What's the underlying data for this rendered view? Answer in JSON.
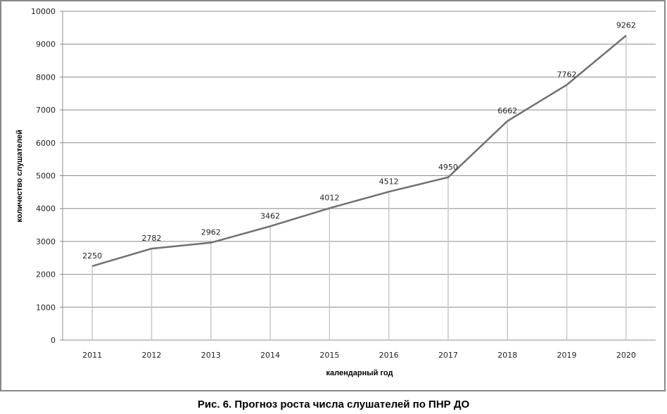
{
  "chart_data": {
    "type": "line",
    "title": "",
    "xlabel": "календарный год",
    "ylabel": "количество слушателей",
    "categories": [
      "2011",
      "2012",
      "2013",
      "2014",
      "2015",
      "2016",
      "2017",
      "2018",
      "2019",
      "2020"
    ],
    "series": [
      {
        "values": [
          2250,
          2782,
          2962,
          3462,
          4012,
          4512,
          4950,
          6662,
          7762,
          9262
        ]
      }
    ],
    "data_labels": [
      "2250",
      "2782",
      "2962",
      "3462",
      "4012",
      "4512",
      "4950",
      "6662",
      "7762",
      "9262"
    ],
    "ylim": [
      0,
      10000
    ],
    "yticks": [
      "0",
      "1000",
      "2000",
      "3000",
      "4000",
      "5000",
      "6000",
      "7000",
      "8000",
      "9000",
      "10000"
    ],
    "grid": true,
    "drop_lines": true,
    "legend": "none",
    "colors": {
      "line": "#707070",
      "grid": "#8c8c8c",
      "drop": "#c8c8c8",
      "border": "#888888"
    }
  },
  "caption": "Рис. 6. Прогноз роста числа слушателей по ПНР ДО"
}
